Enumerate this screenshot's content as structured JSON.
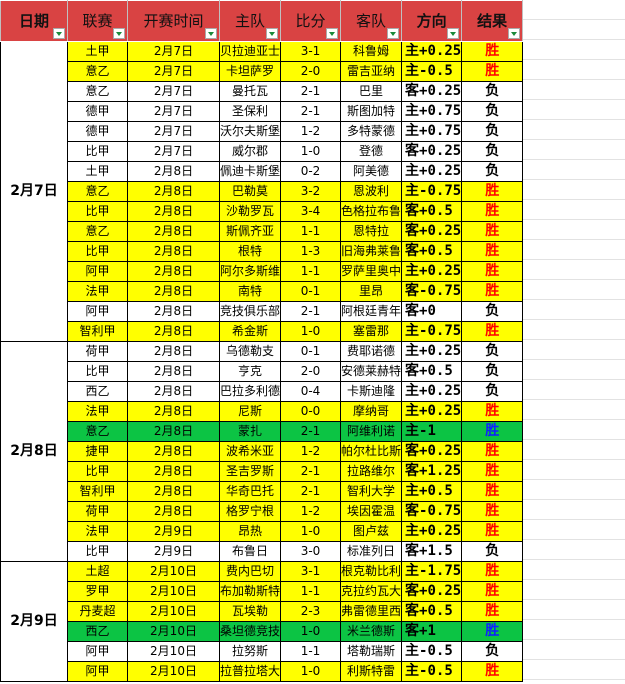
{
  "headers": [
    "日期",
    "联赛",
    "开赛时间",
    "主队",
    "比分",
    "客队",
    "方向",
    "结果"
  ],
  "colors": {
    "header": "#d94343",
    "highlight_win": "#ffff00",
    "highlight_green": "#0cc444",
    "win_text": "#ff0000",
    "win_text_green": "#1020ff"
  },
  "groups": [
    {
      "date": "2月7日",
      "rows": [
        [
          "土甲",
          "2月7日",
          "贝拉迪亚士",
          "3-1",
          "科鲁姆",
          "主+0.25",
          "胜",
          "y"
        ],
        [
          "意乙",
          "2月7日",
          "卡坦萨罗",
          "2-0",
          "雷吉亚纳",
          "主-0.5",
          "胜",
          "y"
        ],
        [
          "意乙",
          "2月7日",
          "曼托瓦",
          "2-1",
          "巴里",
          "客+0.25",
          "负",
          ""
        ],
        [
          "德甲",
          "2月7日",
          "圣保利",
          "2-1",
          "斯图加特",
          "主+0.75",
          "负",
          ""
        ],
        [
          "德甲",
          "2月7日",
          "沃尔夫斯堡",
          "1-2",
          "多特蒙德",
          "主+0.75",
          "负",
          ""
        ],
        [
          "比甲",
          "2月7日",
          "威尔郡",
          "1-0",
          "登德",
          "客+0.25",
          "负",
          ""
        ],
        [
          "土甲",
          "2月8日",
          "佩迪卡斯堡",
          "0-2",
          "阿美德",
          "主+0.25",
          "负",
          ""
        ],
        [
          "意乙",
          "2月8日",
          "巴勒莫",
          "3-2",
          "恩波利",
          "主-0.75",
          "胜",
          "y"
        ],
        [
          "比甲",
          "2月8日",
          "沙勒罗瓦",
          "3-4",
          "色格拉布鲁",
          "客+0.5",
          "胜",
          "y"
        ],
        [
          "意乙",
          "2月8日",
          "斯佩齐亚",
          "1-1",
          "恩特拉",
          "客+0.25",
          "胜",
          "y"
        ],
        [
          "比甲",
          "2月8日",
          "根特",
          "1-3",
          "旧海弗莱鲁",
          "客+0.5",
          "胜",
          "y"
        ],
        [
          "阿甲",
          "2月8日",
          "阿尔多斯维",
          "1-1",
          "罗萨里奥中",
          "主+0.25",
          "胜",
          "y"
        ],
        [
          "法甲",
          "2月8日",
          "南特",
          "0-1",
          "里昂",
          "客-0.75",
          "胜",
          "y"
        ],
        [
          "阿甲",
          "2月8日",
          "竞技俱乐部",
          "2-1",
          "阿根廷青年",
          "客+0",
          "负",
          ""
        ],
        [
          "智利甲",
          "2月8日",
          "希金斯",
          "1-0",
          "塞雷那",
          "主-0.75",
          "胜",
          "y"
        ]
      ]
    },
    {
      "date": "2月8日",
      "rows": [
        [
          "荷甲",
          "2月8日",
          "乌德勒支",
          "0-1",
          "费耶诺德",
          "主+0.25",
          "负",
          ""
        ],
        [
          "比甲",
          "2月8日",
          "亨克",
          "2-0",
          "安德莱赫特",
          "客+0.5",
          "负",
          ""
        ],
        [
          "西乙",
          "2月8日",
          "巴拉多利德",
          "0-4",
          "卡斯迪隆",
          "主+0.25",
          "负",
          ""
        ],
        [
          "法甲",
          "2月8日",
          "尼斯",
          "0-0",
          "摩纳哥",
          "主+0.25",
          "胜",
          "y"
        ],
        [
          "意乙",
          "2月8日",
          "蒙扎",
          "2-1",
          "阿维利诺",
          "主-1",
          "胜",
          "g"
        ],
        [
          "捷甲",
          "2月8日",
          "波希米亚",
          "1-2",
          "帕尔杜比斯",
          "客+0.25",
          "胜",
          "y"
        ],
        [
          "比甲",
          "2月8日",
          "圣吉罗斯",
          "2-1",
          "拉路维尔",
          "客+1.25",
          "胜",
          "y"
        ],
        [
          "智利甲",
          "2月8日",
          "华奇巴托",
          "2-1",
          "智利大学",
          "主+0.5",
          "胜",
          "y"
        ],
        [
          "荷甲",
          "2月8日",
          "格罗宁根",
          "1-2",
          "埃因霍温",
          "客-0.75",
          "胜",
          "y"
        ],
        [
          "法甲",
          "2月9日",
          "昂热",
          "1-0",
          "图卢兹",
          "主+0.25",
          "胜",
          "y"
        ],
        [
          "比甲",
          "2月9日",
          "布鲁日",
          "3-0",
          "标准列日",
          "客+1.5",
          "负",
          ""
        ]
      ]
    },
    {
      "date": "2月9日",
      "rows": [
        [
          "土超",
          "2月10日",
          "费内巴切",
          "3-1",
          "根克勒比利",
          "主-1.75",
          "胜",
          "y"
        ],
        [
          "罗甲",
          "2月10日",
          "布加勒斯特",
          "1-1",
          "克拉约瓦大",
          "客+0.25",
          "胜",
          "y"
        ],
        [
          "丹麦超",
          "2月10日",
          "瓦埃勒",
          "2-3",
          "弗雷德里西",
          "客+0.5",
          "胜",
          "y"
        ],
        [
          "西乙",
          "2月10日",
          "桑坦德竞技",
          "1-0",
          "米兰德斯",
          "客+1",
          "胜",
          "g"
        ],
        [
          "阿甲",
          "2月10日",
          "拉努斯",
          "1-1",
          "塔勒瑞斯",
          "主-0.5",
          "负",
          ""
        ],
        [
          "阿甲",
          "2月10日",
          "拉普拉塔大",
          "1-0",
          "利斯特雷",
          "主-0.5",
          "胜",
          "y"
        ]
      ]
    }
  ]
}
